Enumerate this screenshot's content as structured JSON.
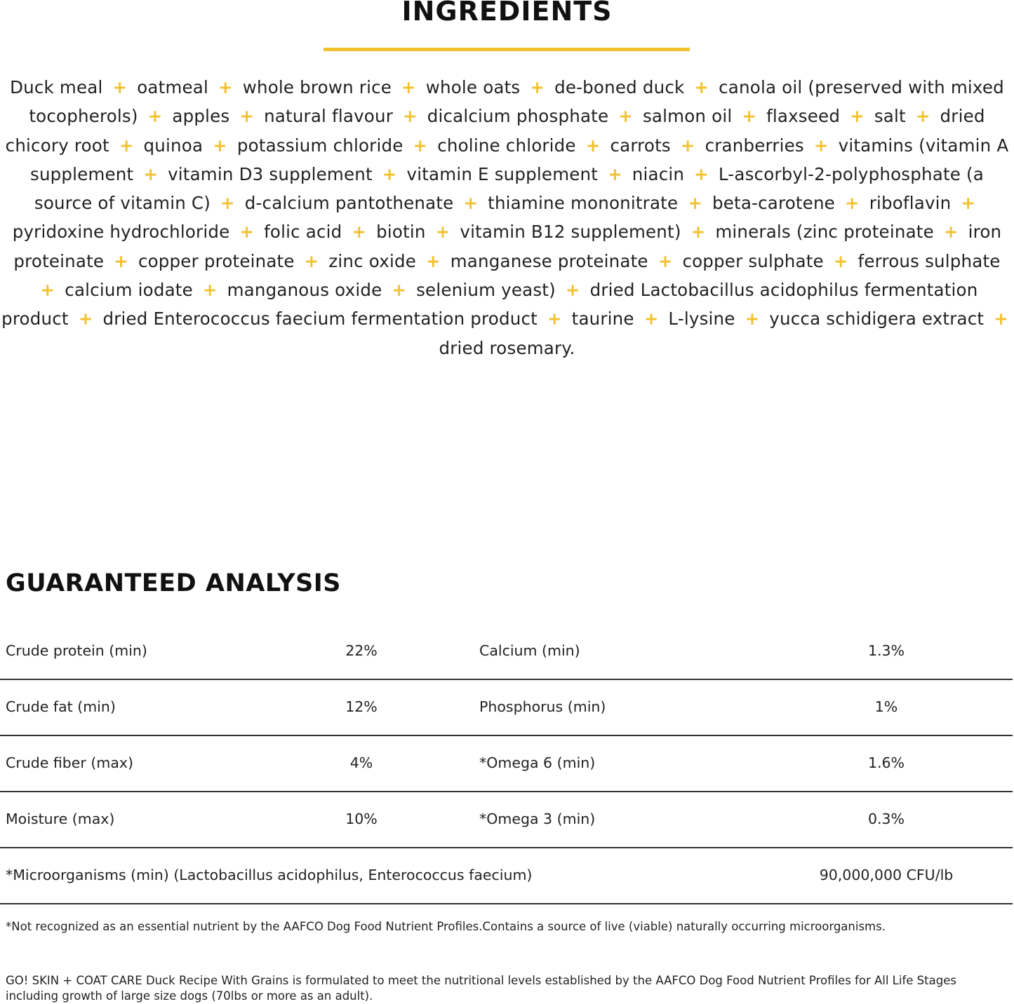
{
  "ingredients_section": {
    "title": "INGREDIENTS",
    "accent_color": "#f2c12e",
    "separator": "+",
    "items": [
      "Duck meal",
      "oatmeal",
      "whole brown rice",
      "whole oats",
      "de-boned duck",
      "canola oil (preserved with mixed tocopherols)",
      "apples",
      "natural flavour",
      "dicalcium phosphate",
      "salmon oil",
      "flaxseed",
      "salt",
      "dried chicory root",
      "quinoa",
      "potassium chloride",
      "choline chloride",
      "carrots",
      "cranberries",
      "vitamins (vitamin A supplement",
      "vitamin D3 supplement",
      "vitamin E supplement",
      "niacin",
      "L-ascorbyl-2-polyphosphate (a source of vitamin C)",
      "d-calcium pantothenate",
      "thiamine mononitrate",
      "beta-carotene",
      "riboflavin",
      "pyridoxine hydrochloride",
      "folic acid",
      "biotin",
      "vitamin B12 supplement)",
      "minerals (zinc proteinate",
      "iron proteinate",
      "copper proteinate",
      "zinc oxide",
      "manganese proteinate",
      "copper sulphate",
      "ferrous sulphate",
      "calcium iodate",
      "manganous oxide",
      "selenium yeast)",
      "dried Lactobacillus acidophilus fermentation product",
      "dried Enterococcus faecium fermentation product",
      "taurine",
      "L-lysine",
      "yucca schidigera extract",
      "dried rosemary."
    ]
  },
  "analysis": {
    "title": "GUARANTEED ANALYSIS",
    "rows": [
      {
        "label1": "Crude protein (min)",
        "value1": "22%",
        "label2": "Calcium (min)",
        "value2": "1.3%"
      },
      {
        "label1": "Crude fat (min)",
        "value1": "12%",
        "label2": "Phosphorus (min)",
        "value2": "1%"
      },
      {
        "label1": "Crude fiber (max)",
        "value1": "4%",
        "label2": "*Omega 6 (min)",
        "value2": "1.6%"
      },
      {
        "label1": "Moisture (max)",
        "value1": "10%",
        "label2": "*Omega 3 (min)",
        "value2": "0.3%"
      }
    ],
    "wide_row": {
      "label": "*Microorganisms (min) (Lactobacillus acidophilus, Enterococcus faecium)",
      "value": "90,000,000 CFU/lb"
    },
    "footnote": "*Not recognized as an essential nutrient by the AAFCO Dog Food Nutrient Profiles.Contains a source of live (viable) naturally occurring microorganisms.",
    "statement": "GO! SKIN + COAT CARE Duck Recipe With Grains is formulated to meet the nutritional levels established by the AAFCO Dog Food Nutrient Profiles for All Life Stages including growth of large size dogs (70lbs or more as an adult)."
  }
}
